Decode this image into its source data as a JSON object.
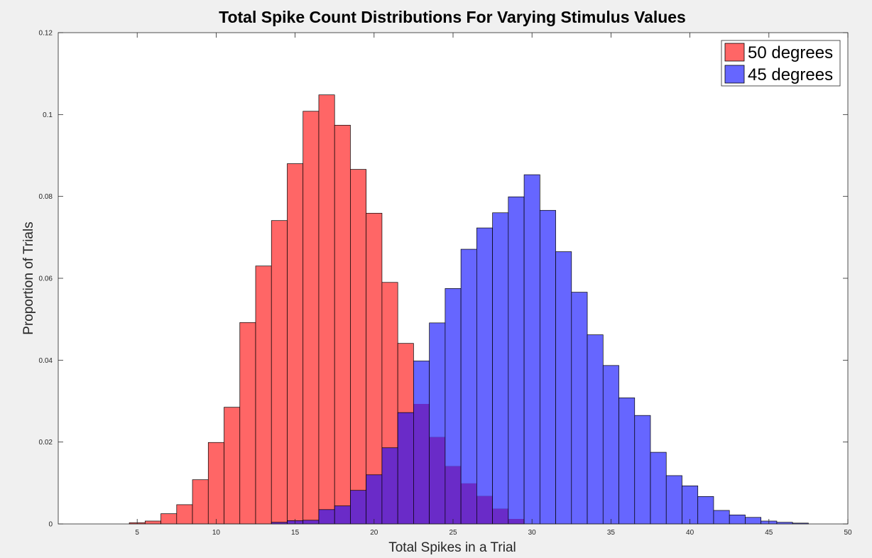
{
  "chart_data": {
    "type": "bar",
    "title": "Total Spike Count Distributions For Varying Stimulus Values",
    "xlabel": "Total Spikes in a Trial",
    "ylabel": "Proportion of Trials",
    "xlim": [
      0,
      50
    ],
    "ylim": [
      0,
      0.12
    ],
    "xticks": [
      5,
      10,
      15,
      20,
      25,
      30,
      35,
      40,
      45,
      50
    ],
    "yticks": [
      0,
      0.02,
      0.04,
      0.06,
      0.08,
      0.1,
      0.12
    ],
    "ytick_labels": [
      "0",
      "0.02",
      "0.04",
      "0.06",
      "0.08",
      "0.1",
      "0.12"
    ],
    "bin_width": 1,
    "legend_position": "top-right",
    "overlap_color": "#6a2bc8",
    "series": [
      {
        "name": "50 degrees",
        "color": "#ff6666",
        "bins": [
          5,
          6,
          7,
          8,
          9,
          10,
          11,
          12,
          13,
          14,
          15,
          16,
          17,
          18,
          19,
          20,
          21,
          22,
          23,
          24,
          25,
          26,
          27,
          28,
          29
        ],
        "values": [
          0.0003,
          0.0007,
          0.0025,
          0.0047,
          0.0108,
          0.0199,
          0.0285,
          0.0492,
          0.063,
          0.0741,
          0.088,
          0.1008,
          0.1048,
          0.0974,
          0.0866,
          0.0759,
          0.059,
          0.0441,
          0.0293,
          0.0212,
          0.0141,
          0.0099,
          0.0068,
          0.0037,
          0.0012
        ]
      },
      {
        "name": "45 degrees",
        "color": "#6666ff",
        "bins": [
          14,
          15,
          16,
          17,
          18,
          19,
          20,
          21,
          22,
          23,
          24,
          25,
          26,
          27,
          28,
          29,
          30,
          31,
          32,
          33,
          34,
          35,
          36,
          37,
          38,
          39,
          40,
          41,
          42,
          43,
          44,
          45,
          46,
          47
        ],
        "values": [
          0.0004,
          0.0008,
          0.0009,
          0.0035,
          0.0044,
          0.0082,
          0.012,
          0.0186,
          0.0272,
          0.0398,
          0.0491,
          0.0575,
          0.0671,
          0.0723,
          0.076,
          0.0799,
          0.0853,
          0.0766,
          0.0665,
          0.0566,
          0.0462,
          0.0387,
          0.0308,
          0.0265,
          0.0175,
          0.0118,
          0.0093,
          0.0067,
          0.0033,
          0.0022,
          0.0016,
          0.0007,
          0.0004,
          0.0002
        ]
      }
    ]
  }
}
